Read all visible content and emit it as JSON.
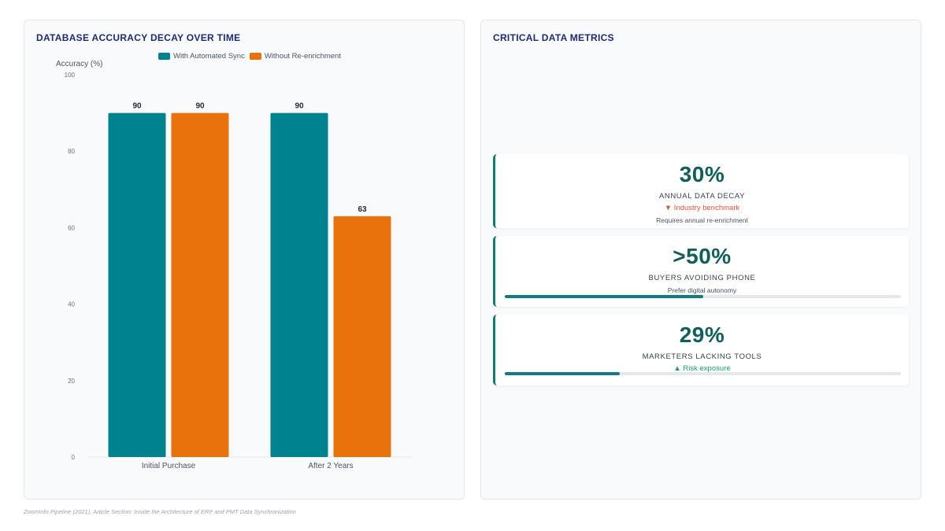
{
  "left_panel": {
    "title": "DATABASE ACCURACY DECAY OVER TIME"
  },
  "right_panel": {
    "title": "CRITICAL DATA METRICS",
    "metrics": [
      {
        "value": "30%",
        "label": "ANNUAL DATA DECAY",
        "trend": "▼ Industry benchmark",
        "trend_direction": "down",
        "note": "Requires annual re-enrichment",
        "progress": null
      },
      {
        "value": ">50%",
        "label": "BUYERS AVOIDING PHONE",
        "trend": "",
        "trend_direction": null,
        "note": "Prefer digital autonomy",
        "progress": 0.5
      },
      {
        "value": "29%",
        "label": "MARKETERS LACKING TOOLS",
        "trend": "▲ Risk exposure",
        "trend_direction": "up",
        "note": "",
        "progress": 0.29
      }
    ]
  },
  "footer": "ZoomInfo Pipeline (2021), Article Section: Inside the Architecture of ERP and PMT Data Synchronization",
  "colors": {
    "teal": "#00838f",
    "orange": "#e8720c",
    "accent": "#0f7b72"
  },
  "chart_data": {
    "type": "bar",
    "title": "DATABASE ACCURACY DECAY OVER TIME",
    "categories": [
      "Initial Purchase",
      "After 2 Years"
    ],
    "series": [
      {
        "name": "With Automated Sync",
        "values": [
          90,
          90
        ],
        "color": "#00838f"
      },
      {
        "name": "Without Re-enrichment",
        "values": [
          90,
          63
        ],
        "color": "#e8720c"
      }
    ],
    "ylabel": "Accuracy (%)",
    "xlabel": "",
    "ylim": [
      0,
      100
    ],
    "yticks": [
      0,
      20,
      40,
      60,
      80,
      100
    ],
    "legend_position": "top",
    "grid": false
  }
}
